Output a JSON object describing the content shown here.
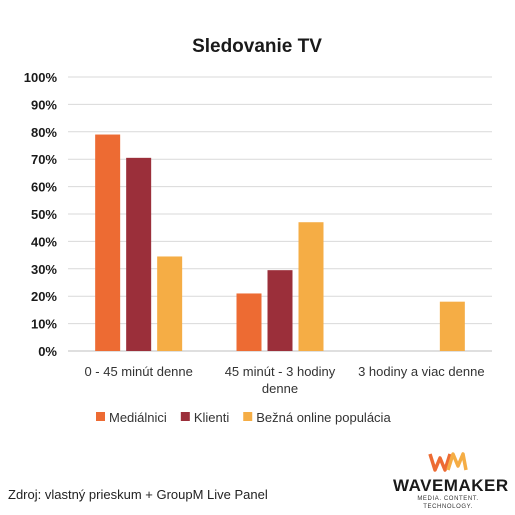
{
  "chart_data": {
    "type": "bar",
    "title": "Sledovanie TV",
    "categories": [
      "0 - 45 minút denne",
      "45 minút - 3 hodiny denne",
      "3 hodiny a viac denne"
    ],
    "category_lines": [
      [
        "0 - 45 minút denne"
      ],
      [
        "45 minút - 3 hodiny",
        "denne"
      ],
      [
        "3 hodiny a viac denne"
      ]
    ],
    "series": [
      {
        "name": "Mediálnici",
        "color": "#ed6b33",
        "values": [
          79,
          21,
          0
        ]
      },
      {
        "name": "Klienti",
        "color": "#9b2f3a",
        "values": [
          70.5,
          29.5,
          0
        ]
      },
      {
        "name": "Bežná online populácia",
        "color": "#f5ad45",
        "values": [
          34.5,
          47,
          18
        ]
      }
    ],
    "ylim": [
      0,
      100
    ],
    "yticks": [
      "0%",
      "10%",
      "20%",
      "30%",
      "40%",
      "50%",
      "60%",
      "70%",
      "80%",
      "90%",
      "100%"
    ],
    "grid": true,
    "legend_position": "bottom"
  },
  "footer": {
    "source": "Zdroj: vlastný prieskum + GroupM Live Panel"
  },
  "logo": {
    "mark": "WM",
    "word": "WAVEMAKER",
    "tagline": "MEDIA. CONTENT. TECHNOLOGY.",
    "mark_colors": [
      "#ed6b33",
      "#f5ad45"
    ]
  }
}
